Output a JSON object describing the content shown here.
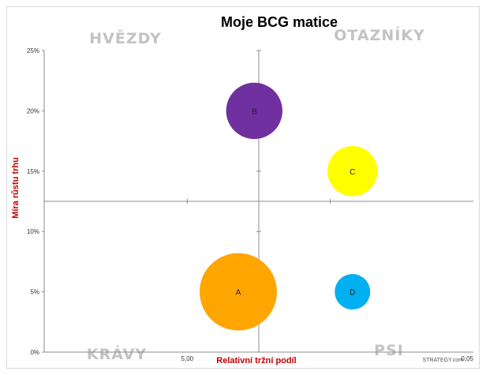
{
  "chart_data": {
    "type": "bubble",
    "title": "Moje BCG matice",
    "xlabel": "Relativní tržní podíl",
    "ylabel": "Míra růstu trhu",
    "y_ticks": [
      "0%",
      "5%",
      "10%",
      "15%",
      "20%",
      "25%"
    ],
    "y_tick_values": [
      0,
      5,
      10,
      15,
      20,
      25
    ],
    "ylim": [
      0,
      25
    ],
    "x_axis_scale": "logarithmic, reversed",
    "xlim": [
      0.05,
      50
    ],
    "x_tick_labels": [
      {
        "value": 5,
        "label": "5,00"
      },
      {
        "value": 0.05,
        "label": "0,05"
      }
    ],
    "x_minor_ticks": [
      5,
      0.5
    ],
    "quadrant_labels": {
      "top_left": "HVĚZDY",
      "top_right": "OTAZNÍKY",
      "bottom_left": "KRÁVY",
      "bottom_right": "PSI"
    },
    "series": [
      {
        "name": "A",
        "x": 2.2,
        "y": 5,
        "size": 100,
        "color": "#FFA500"
      },
      {
        "name": "B",
        "x": 1.7,
        "y": 20,
        "size": 53,
        "color": "#7030A0"
      },
      {
        "name": "C",
        "x": 0.35,
        "y": 15,
        "size": 42,
        "color": "#FFFF00"
      },
      {
        "name": "D",
        "x": 0.35,
        "y": 5,
        "size": 21,
        "color": "#00B0F0"
      }
    ],
    "credit": "STRATEGY.com"
  },
  "colors": {
    "axis_title": "#C00000",
    "quadrant_label": "#C3C3C3",
    "axis_line": "#8c8c8c"
  }
}
